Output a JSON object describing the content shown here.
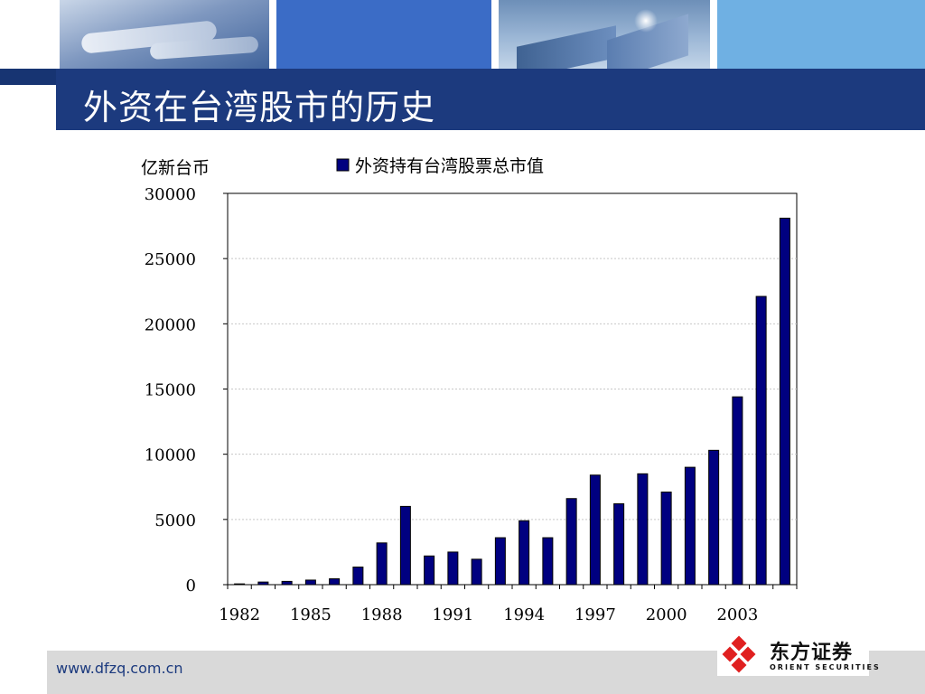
{
  "slide": {
    "title": "外资在台湾股市的历史"
  },
  "footer": {
    "url": "www.dfzq.com.cn"
  },
  "logo": {
    "name": "东方证券",
    "sub": "ORIENT SECURITIES",
    "mark_color": "#e02020"
  },
  "colors": {
    "band": "#1c3a7e",
    "bar": "#000080"
  },
  "chart_data": {
    "type": "bar",
    "ylabel": "亿新台币",
    "legend_position": "top",
    "series": [
      {
        "name": "外资持有台湾股票总市值",
        "values": [
          60,
          200,
          250,
          350,
          450,
          1350,
          3200,
          6000,
          2200,
          2500,
          1950,
          3600,
          4900,
          3600,
          6600,
          8400,
          6200,
          8500,
          7100,
          9000,
          10300,
          14400,
          22100,
          28100
        ]
      }
    ],
    "x": [
      1982,
      1983,
      1984,
      1985,
      1986,
      1987,
      1988,
      1989,
      1990,
      1991,
      1992,
      1993,
      1994,
      1995,
      1996,
      1997,
      1998,
      1999,
      2000,
      2001,
      2002,
      2003,
      2004,
      2005
    ],
    "x_tick_labels": [
      "1982",
      "1985",
      "1988",
      "1991",
      "1994",
      "1997",
      "2000",
      "2003"
    ],
    "y_tick_labels": [
      "0",
      "5000",
      "10000",
      "15000",
      "20000",
      "25000",
      "30000"
    ],
    "ylim": [
      0,
      30000
    ],
    "grid": true
  }
}
